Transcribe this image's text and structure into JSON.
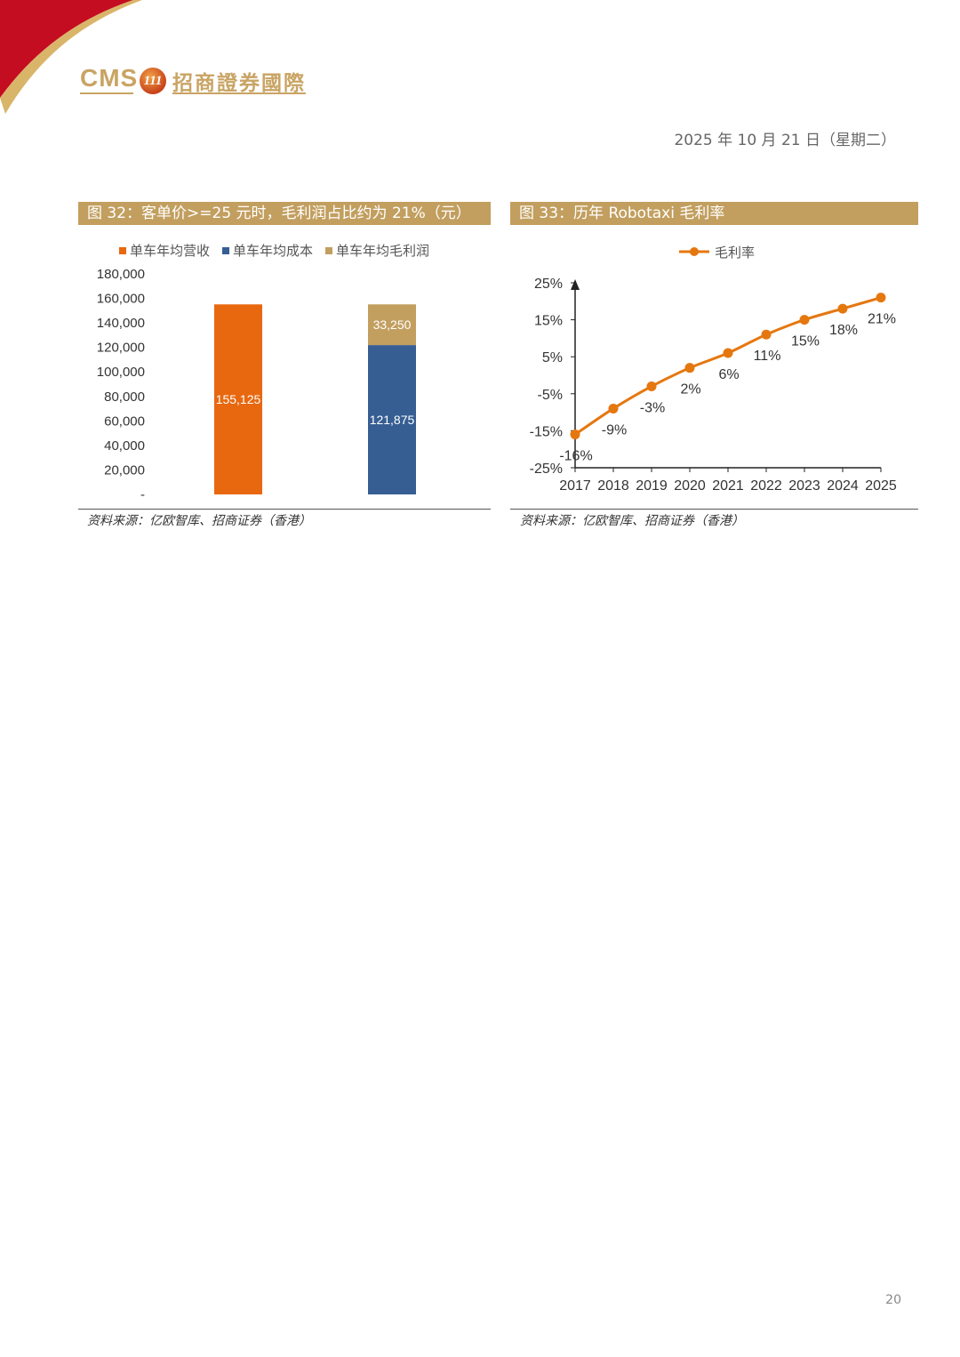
{
  "header": {
    "logo_en": "CMS",
    "logo_badge": "111",
    "logo_cn": "招商證券國際",
    "date": "2025 年 10 月 21 日（星期二）"
  },
  "colors": {
    "gold": "#c29f5f",
    "red": "#c40d20",
    "orange": "#e8680f",
    "blue": "#365e93",
    "line_orange": "#e5770f"
  },
  "figure32": {
    "title": "图 32：客单价>=25 元时，毛利润占比约为 21%（元）",
    "source": "资料来源：亿欧智库、招商证券（香港）"
  },
  "figure33": {
    "title": "图 33：历年 Robotaxi 毛利率",
    "source": "资料来源：亿欧智库、招商证券（香港）"
  },
  "page_number": "20",
  "chart_data": [
    {
      "type": "bar",
      "stacked": true,
      "title": "",
      "legend_position": "top",
      "ylim": [
        0,
        180000
      ],
      "y_ticks": [
        "-",
        "20,000",
        "40,000",
        "60,000",
        "80,000",
        "100,000",
        "120,000",
        "140,000",
        "160,000",
        "180,000"
      ],
      "categories": [
        "",
        ""
      ],
      "series": [
        {
          "name": "单车年均营收",
          "color": "#e8680f",
          "values": [
            155125,
            0
          ],
          "labels": [
            "155,125",
            ""
          ]
        },
        {
          "name": "单车年均成本",
          "color": "#365e93",
          "values": [
            0,
            121875
          ],
          "labels": [
            "",
            "121,875"
          ]
        },
        {
          "name": "单车年均毛利润",
          "color": "#c29f5f",
          "values": [
            0,
            33250
          ],
          "labels": [
            "",
            "33,250"
          ]
        }
      ]
    },
    {
      "type": "line",
      "title": "",
      "legend_position": "top",
      "x": [
        "2017",
        "2018",
        "2019",
        "2020",
        "2021",
        "2022",
        "2023",
        "2024",
        "2025"
      ],
      "ylim": [
        -25,
        25
      ],
      "y_ticks": [
        "-25%",
        "-15%",
        "-5%",
        "5%",
        "15%",
        "25%"
      ],
      "series": [
        {
          "name": "毛利率",
          "color": "#e5770f",
          "values": [
            -16,
            -9,
            -3,
            2,
            6,
            11,
            15,
            18,
            21
          ],
          "labels": [
            "-16%",
            "-9%",
            "-3%",
            "2%",
            "6%",
            "11%",
            "15%",
            "18%",
            "21%"
          ]
        }
      ]
    }
  ]
}
